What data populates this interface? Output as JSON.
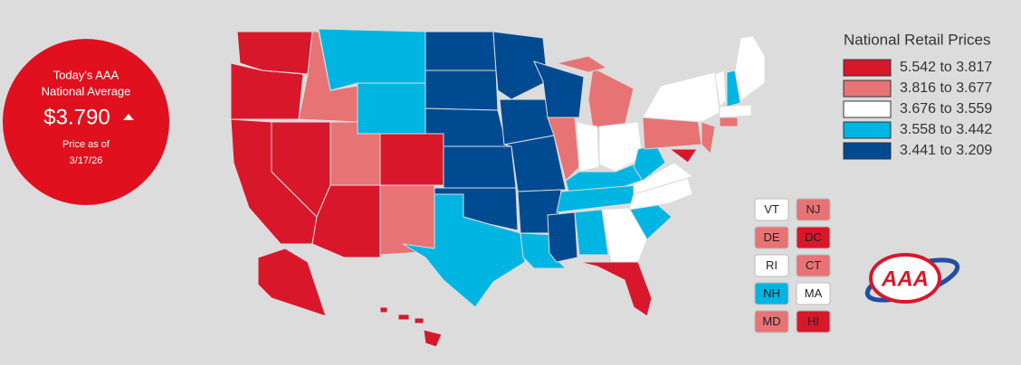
{
  "header": {
    "label_line1": "Today's AAA",
    "label_line2": "National Average",
    "price": "$3.790",
    "date_label": "Price as of",
    "date": "3/17/26"
  },
  "legend": {
    "title": "National Retail Prices",
    "items": [
      {
        "label": "5.542 to 3.817",
        "color": "#d8172b"
      },
      {
        "label": "3.816 to 3.677",
        "color": "#e87375"
      },
      {
        "label": "3.676 to 3.559",
        "color": "#ffffff"
      },
      {
        "label": "3.558 to 3.442",
        "color": "#00b5e2"
      },
      {
        "label": "3.441 to 3.209",
        "color": "#004a91"
      }
    ]
  },
  "small_states": [
    {
      "label": "VT",
      "color": "#ffffff"
    },
    {
      "label": "DE",
      "color": "#e87375"
    },
    {
      "label": "RI",
      "color": "#ffffff"
    },
    {
      "label": "NH",
      "color": "#00b5e2"
    },
    {
      "label": "MD",
      "color": "#e87375"
    },
    {
      "label": "NJ",
      "color": "#e87375"
    },
    {
      "label": "DC",
      "color": "#d8172b"
    },
    {
      "label": "CT",
      "color": "#e87375"
    },
    {
      "label": "MA",
      "color": "#ffffff"
    },
    {
      "label": "HI",
      "color": "#d8172b"
    }
  ],
  "logo": "AAA"
}
